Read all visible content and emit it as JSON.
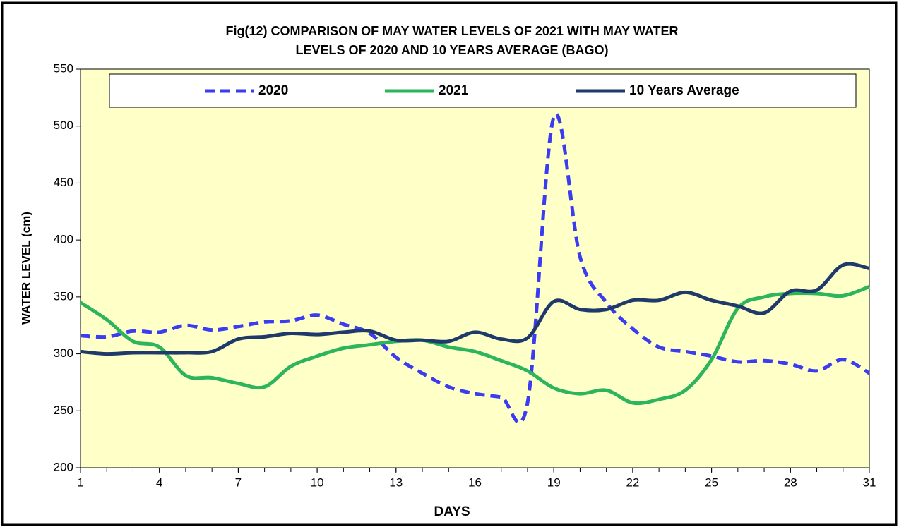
{
  "chart_data": {
    "type": "line",
    "title": [
      "Fig(12)  COMPARISON  OF MAY WATER  LEVELS OF 2021  WITH  MAY WATER",
      "LEVELS OF 2020  AND 10 YEARS  AVERAGE    (BAGO)"
    ],
    "xlabel": "DAYS",
    "ylabel": "WATER LEVEL (cm)",
    "x": [
      1,
      2,
      3,
      4,
      5,
      6,
      7,
      8,
      9,
      10,
      11,
      12,
      13,
      14,
      15,
      16,
      17,
      18,
      19,
      20,
      21,
      22,
      23,
      24,
      25,
      26,
      27,
      28,
      29,
      30,
      31
    ],
    "series": [
      {
        "name": "2020",
        "color": "#3b3bf0",
        "style": "dashed",
        "values": [
          316,
          315,
          320,
          319,
          325,
          321,
          324,
          328,
          329,
          334,
          326,
          318,
          297,
          283,
          271,
          265,
          262,
          257,
          508,
          385,
          345,
          322,
          306,
          302,
          298,
          293,
          294,
          291,
          285,
          295,
          283
        ]
      },
      {
        "name": "2021",
        "color": "#2db55d",
        "style": "solid",
        "values": [
          345,
          330,
          311,
          306,
          281,
          279,
          274,
          271,
          289,
          298,
          305,
          308,
          311,
          312,
          306,
          302,
          294,
          285,
          270,
          265,
          268,
          257,
          260,
          268,
          295,
          340,
          350,
          353,
          353,
          351,
          359
        ]
      },
      {
        "name": "10 Years Average",
        "color": "#1f3a6a",
        "style": "solid",
        "values": [
          302,
          300,
          301,
          301,
          301,
          302,
          313,
          315,
          318,
          317,
          319,
          320,
          312,
          312,
          311,
          319,
          313,
          314,
          346,
          339,
          339,
          347,
          347,
          354,
          347,
          342,
          336,
          355,
          356,
          378,
          375
        ]
      }
    ],
    "xlim": [
      1,
      31
    ],
    "xticks": [
      1,
      4,
      7,
      10,
      13,
      16,
      19,
      22,
      25,
      28,
      31
    ],
    "ylim": [
      200,
      550
    ],
    "yticks": [
      200,
      250,
      300,
      350,
      400,
      450,
      500,
      550
    ],
    "grid": false,
    "legend": "top"
  }
}
